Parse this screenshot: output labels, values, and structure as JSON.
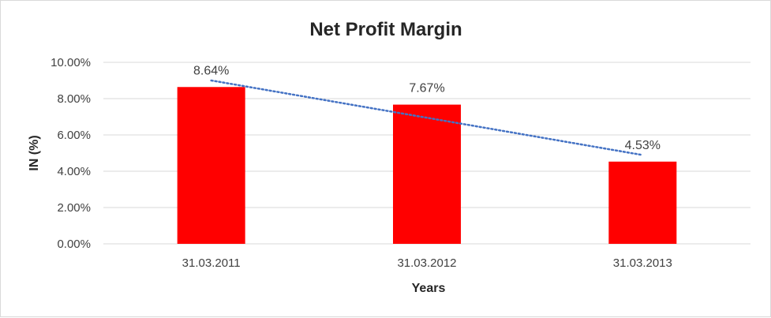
{
  "chart_data": {
    "type": "bar",
    "title": "Net Profit Margin",
    "xlabel": "Years",
    "ylabel": "IN (%)",
    "categories": [
      "31.03.2011",
      "31.03.2012",
      "31.03.2013"
    ],
    "values": [
      8.64,
      7.67,
      4.53
    ],
    "data_labels": [
      "8.64%",
      "7.67%",
      "4.53%"
    ],
    "ylim": [
      0,
      10
    ],
    "yticks": [
      0,
      2,
      4,
      6,
      8,
      10
    ],
    "ytick_labels": [
      "0.00%",
      "2.00%",
      "4.00%",
      "6.00%",
      "8.00%",
      "10.00%"
    ],
    "trendline": {
      "type": "linear",
      "style": "dotted",
      "color": "#4472c4"
    },
    "bar_color": "#ff0000",
    "grid": true,
    "legend": false
  }
}
